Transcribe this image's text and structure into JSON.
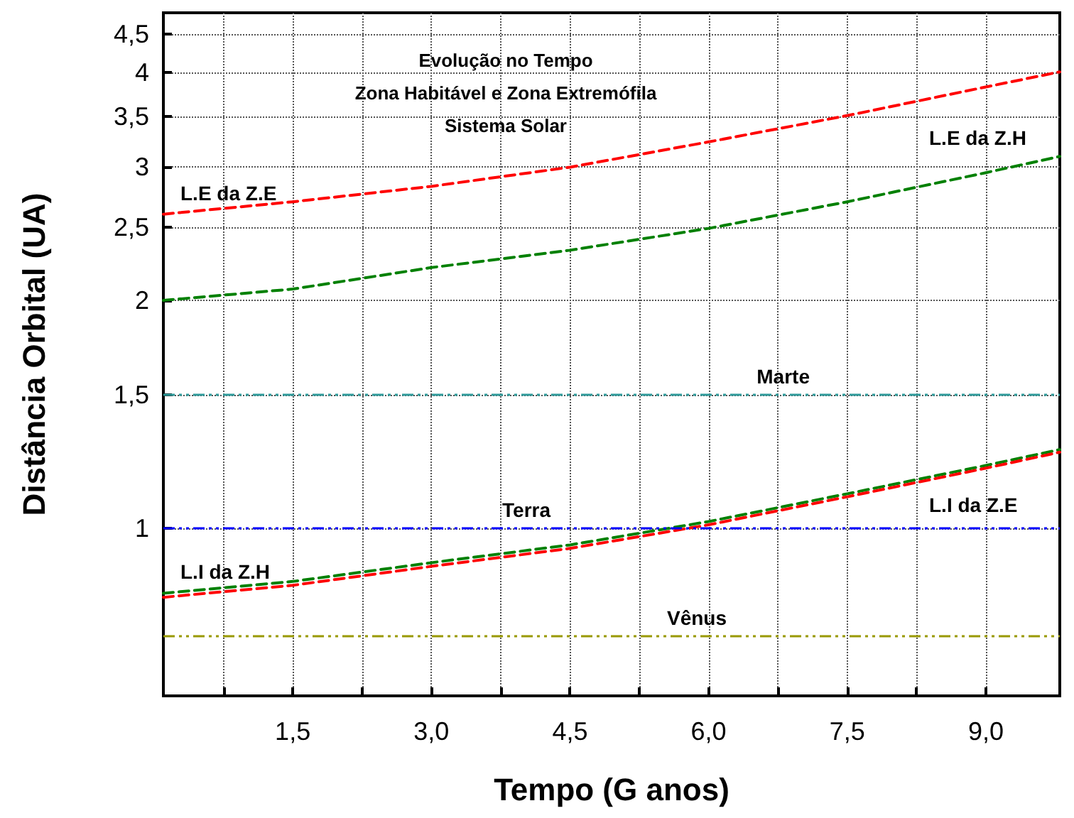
{
  "chart_data": {
    "type": "line",
    "title": "Evolução no Tempo",
    "subtitle": "Zona Habitável e Zona Extremófila\nSistema Solar",
    "xlabel": "Tempo (G anos)",
    "ylabel": "Distância Orbital (UA)",
    "x": [
      0.1,
      1.5,
      3.0,
      4.5,
      6.0,
      7.5,
      9.0,
      9.8
    ],
    "series": [
      {
        "name": "L.E da Z.E",
        "color": "#ff0000",
        "values": [
          2.6,
          2.7,
          2.83,
          3.0,
          3.24,
          3.51,
          3.83,
          4.01
        ]
      },
      {
        "name": "L.E da Z.H",
        "color": "#008000",
        "values": [
          2.0,
          2.07,
          2.21,
          2.33,
          2.49,
          2.7,
          2.95,
          3.1
        ]
      },
      {
        "name": "L.I da Z.H",
        "color": "#008000",
        "values": [
          0.82,
          0.85,
          0.9,
          0.95,
          1.02,
          1.11,
          1.21,
          1.27
        ]
      },
      {
        "name": "L.I da Z.E",
        "color": "#ff0000",
        "values": [
          0.81,
          0.84,
          0.89,
          0.94,
          1.01,
          1.1,
          1.2,
          1.26
        ]
      }
    ],
    "xlim": [
      0.1,
      9.8
    ],
    "xticks": [
      {
        "value": 0.75,
        "label": null
      },
      {
        "value": 1.5,
        "label": "1,5"
      },
      {
        "value": 2.25,
        "label": null
      },
      {
        "value": 3.0,
        "label": "3,0"
      },
      {
        "value": 3.75,
        "label": null
      },
      {
        "value": 4.5,
        "label": "4,5"
      },
      {
        "value": 5.25,
        "label": null
      },
      {
        "value": 6.0,
        "label": "6,0"
      },
      {
        "value": 6.75,
        "label": null
      },
      {
        "value": 7.5,
        "label": "7,5"
      },
      {
        "value": 8.25,
        "label": null
      },
      {
        "value": 9.0,
        "label": "9,0"
      }
    ],
    "ylim": [
      0.6,
      4.8
    ],
    "yticks": [
      1,
      {
        "value": 1.5,
        "label": "1,5"
      },
      2,
      {
        "value": 2.5,
        "label": "2,5"
      },
      3,
      {
        "value": 3.5,
        "label": "3,5"
      },
      4,
      {
        "value": 4.5,
        "label": "4,5"
      }
    ],
    "log": "y",
    "grid": true,
    "legend": false,
    "marker": "none",
    "line_style": "dashed",
    "ref_lines": [
      {
        "axis": "y",
        "value": 1.5,
        "label": "Marte",
        "color": "#2e9a9a"
      },
      {
        "axis": "y",
        "value": 1,
        "label": "Terra",
        "color": "#0000ff"
      },
      {
        "axis": "y",
        "value": 0.72,
        "label": "Vênus",
        "color": "#999900"
      }
    ]
  }
}
